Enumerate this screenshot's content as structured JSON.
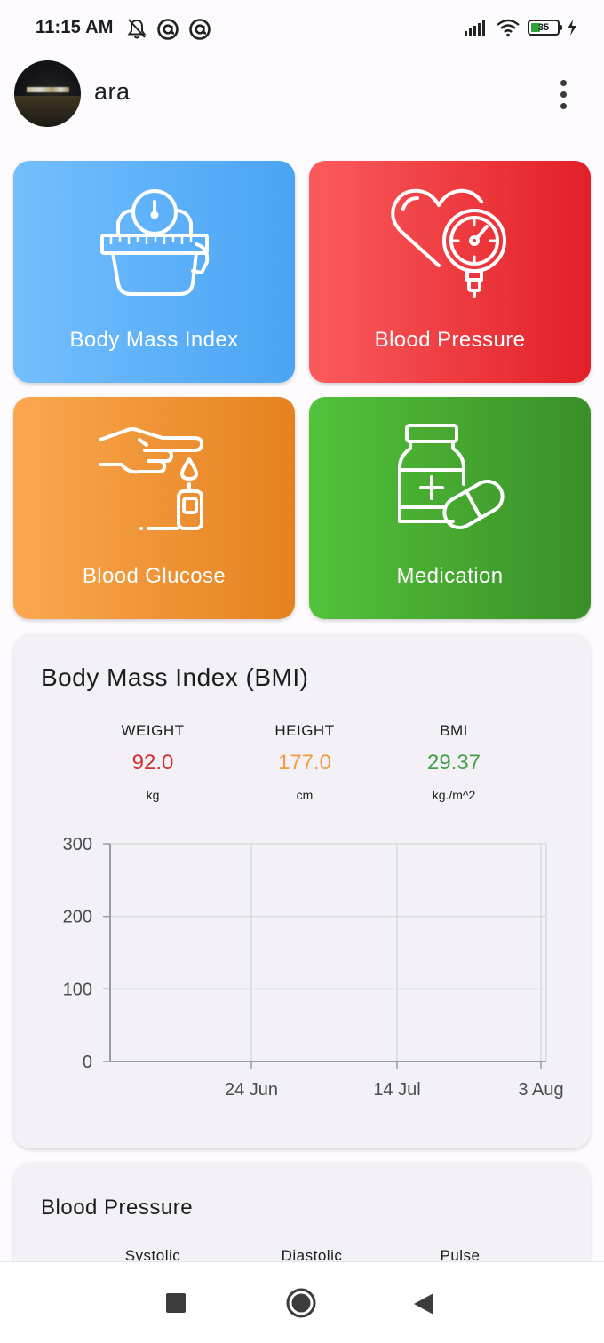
{
  "status_bar": {
    "time": "11:15 AM",
    "battery_level": "35",
    "icons": [
      "bell-off-icon",
      "at-icon",
      "at-icon",
      "signal-icon",
      "wifi-icon",
      "battery-icon",
      "charging-icon"
    ]
  },
  "header": {
    "username": "ara",
    "menu_icon": "more-vert-icon"
  },
  "tiles": [
    {
      "label": "Body Mass Index",
      "icon": "scale-icon",
      "colors": [
        "#74bffd",
        "#4aa4f4"
      ]
    },
    {
      "label": "Blood Pressure",
      "icon": "heart-gauge-icon",
      "colors": [
        "#fb5b5d",
        "#e21f27"
      ]
    },
    {
      "label": "Blood Glucose",
      "icon": "glucose-meter-icon",
      "colors": [
        "#faa850",
        "#e5811f"
      ]
    },
    {
      "label": "Medication",
      "icon": "pill-bottle-icon",
      "colors": [
        "#52c23a",
        "#3a8f27"
      ]
    }
  ],
  "bmi_card": {
    "title": "Body Mass Index (BMI)",
    "metrics": [
      {
        "label": "WEIGHT",
        "value": "92.0",
        "unit": "kg",
        "color": "#d32f2f"
      },
      {
        "label": "HEIGHT",
        "value": "177.0",
        "unit": "cm",
        "color": "#f39b3f"
      },
      {
        "label": "BMI",
        "value": "29.37",
        "unit": "kg./m^2",
        "color": "#43a047"
      }
    ]
  },
  "chart_data": {
    "type": "line",
    "title": "",
    "xlabel": "",
    "ylabel": "",
    "ylim": [
      0,
      300
    ],
    "y_ticks": [
      "0",
      "100",
      "200",
      "300"
    ],
    "x_ticks": [
      "24 Jun",
      "14 Jul",
      "3 Aug"
    ],
    "series": [],
    "grid": true
  },
  "bp_card": {
    "title": "Blood Pressure",
    "metrics": [
      {
        "label": "Systolic"
      },
      {
        "label": "Diastolic"
      },
      {
        "label": "Pulse"
      }
    ]
  },
  "nav_bar": {
    "items": [
      "recents-square-icon",
      "home-circle-icon",
      "back-triangle-icon"
    ]
  }
}
